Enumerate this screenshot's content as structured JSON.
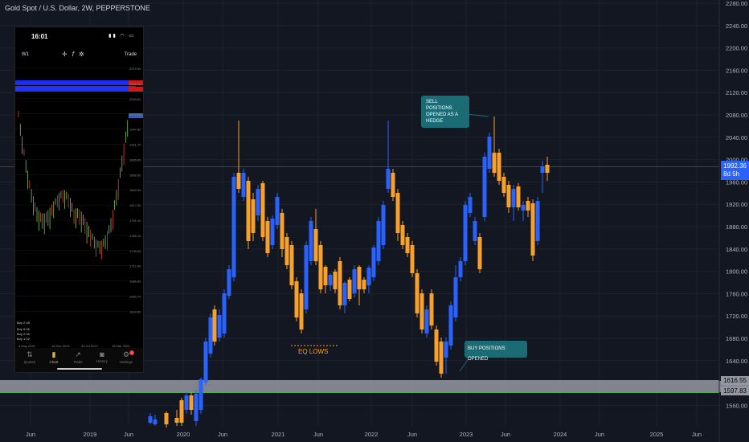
{
  "header": {
    "title": "Gold Spot / U.S. Dollar, 2W, PEPPERSTONE"
  },
  "price_scale": {
    "ticks": [
      "2280.00",
      "2240.00",
      "2200.00",
      "2160.00",
      "2120.00",
      "2080.00",
      "2040.00",
      "2000.00",
      "1960.00",
      "1920.00",
      "1880.00",
      "1840.00",
      "1800.00",
      "1760.00",
      "1720.00",
      "1680.00",
      "1640.00",
      "1600.00",
      "1560.00"
    ]
  },
  "time_scale": {
    "labels": [
      "Jun",
      "2019",
      "Jun",
      "2020",
      "Jun",
      "2021",
      "Jun",
      "2022",
      "Jun",
      "2023",
      "Jun",
      "2024",
      "Jun",
      "2025",
      "Jun"
    ]
  },
  "current_price": {
    "value": "1992.36",
    "countdown": "8d 5h"
  },
  "zone": {
    "upper_label": "1616.55",
    "lower_label": "1597.83"
  },
  "annotations": {
    "sell": "SELL POSITIONS OPENED AS A HEDGE",
    "buy": "BUY POSITIONS OPENED",
    "eq_lows": "EQ LOWS"
  },
  "phone": {
    "time": "16:01",
    "timeframe": "W1",
    "trade_label": "Trade",
    "price_ticks": [
      "2379.59",
      "2026.10",
      "2000.00",
      "1973.90",
      "1947.80",
      "1921.70",
      "1895.60",
      "1869.50",
      "1843.40",
      "1817.30",
      "1791.20",
      "1765.10",
      "1739.00",
      "1712.90",
      "1686.80",
      "1660.70",
      "1634.60"
    ],
    "date_labels": [
      "8 May 2022",
      "16 Dec 2022",
      "30 Jul 2023",
      "18 Mar 2024"
    ],
    "order_labels": [
      "Buy 2.08",
      "Buy 5.06",
      "Buy 2.06",
      "Buy 1.02"
    ],
    "nav": [
      "Quotes",
      "Chart",
      "Trade",
      "History",
      "Settings"
    ],
    "settings_badge": "1"
  },
  "colors": {
    "bull": "#2962ff",
    "bear": "#f7a02b",
    "bg": "#131722",
    "zone": "#9598a1",
    "callout": "#1a6b74",
    "current": "#2962ff"
  }
}
